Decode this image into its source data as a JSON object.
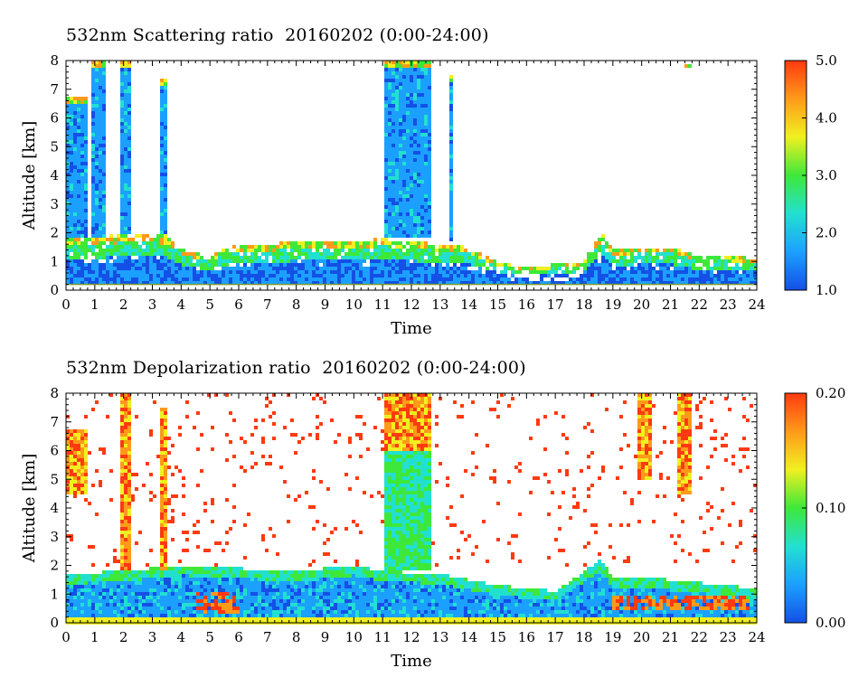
{
  "chart_data": [
    {
      "type": "heatmap",
      "title": "532nm Scattering ratio  20160202 (0:00-24:00)",
      "xlabel": "Time",
      "ylabel": "Altitude [km]",
      "x_ticks": [
        "0",
        "1",
        "2",
        "3",
        "4",
        "5",
        "6",
        "7",
        "8",
        "9",
        "10",
        "11",
        "12",
        "13",
        "14",
        "15",
        "16",
        "17",
        "18",
        "19",
        "20",
        "21",
        "22",
        "23",
        "24"
      ],
      "y_ticks": [
        "0",
        "1",
        "2",
        "3",
        "4",
        "5",
        "6",
        "7",
        "8"
      ],
      "xlim": [
        0,
        24
      ],
      "ylim": [
        0,
        8
      ],
      "colorbar": {
        "range": [
          1.0,
          5.0
        ],
        "tick_labels": [
          "5.0",
          "4.0",
          "3.0",
          "2.0",
          "1.0"
        ],
        "colors": [
          "#1450e6",
          "#1ca0ff",
          "#22e0d0",
          "#3ee83a",
          "#f0f020",
          "#ff9a1a",
          "#ff3a10"
        ]
      },
      "features": {
        "boundary_layer_top_km": [
          [
            0,
            1.8
          ],
          [
            1.5,
            1.9
          ],
          [
            2.5,
            2.0
          ],
          [
            3.5,
            1.9
          ],
          [
            4.0,
            1.5
          ],
          [
            4.5,
            1.3
          ],
          [
            5.0,
            1.2
          ],
          [
            6.0,
            1.6
          ],
          [
            7.0,
            1.6
          ],
          [
            8.0,
            1.7
          ],
          [
            9.0,
            1.7
          ],
          [
            10.0,
            1.7
          ],
          [
            11.0,
            1.8
          ],
          [
            12.0,
            1.7
          ],
          [
            13.0,
            1.6
          ],
          [
            14.0,
            1.5
          ],
          [
            15.0,
            1.0
          ],
          [
            16.0,
            0.8
          ],
          [
            17.0,
            0.9
          ],
          [
            18.0,
            1.0
          ],
          [
            18.6,
            2.0
          ],
          [
            19.0,
            1.4
          ],
          [
            20.0,
            1.5
          ],
          [
            21.0,
            1.5
          ],
          [
            22.0,
            1.2
          ],
          [
            23.0,
            1.2
          ],
          [
            24.0,
            1.1
          ]
        ],
        "cloud_columns": [
          {
            "t0": 0.0,
            "t1": 0.7,
            "base": 1.8,
            "top": 6.8
          },
          {
            "t0": 0.9,
            "t1": 1.4,
            "base": 1.8,
            "top": 8.0
          },
          {
            "t0": 1.9,
            "t1": 2.3,
            "base": 1.9,
            "top": 8.0
          },
          {
            "t0": 3.3,
            "t1": 3.5,
            "base": 1.9,
            "top": 7.4
          },
          {
            "t0": 11.0,
            "t1": 12.7,
            "base": 1.8,
            "top": 8.0
          },
          {
            "t0": 13.3,
            "t1": 13.5,
            "base": 1.7,
            "top": 7.5
          },
          {
            "t0": 21.5,
            "t1": 21.7,
            "base": 7.7,
            "top": 7.9
          }
        ]
      }
    },
    {
      "type": "heatmap",
      "title": "532nm Depolarization ratio  20160202 (0:00-24:00)",
      "xlabel": "Time",
      "ylabel": "Altitude [km]",
      "x_ticks": [
        "0",
        "1",
        "2",
        "3",
        "4",
        "5",
        "6",
        "7",
        "8",
        "9",
        "10",
        "11",
        "12",
        "13",
        "14",
        "15",
        "16",
        "17",
        "18",
        "19",
        "20",
        "21",
        "22",
        "23",
        "24"
      ],
      "y_ticks": [
        "0",
        "1",
        "2",
        "3",
        "4",
        "5",
        "6",
        "7",
        "8"
      ],
      "xlim": [
        0,
        24
      ],
      "ylim": [
        0,
        8
      ],
      "colorbar": {
        "range": [
          0.0,
          0.2
        ],
        "tick_labels": [
          "0.20",
          "0.10",
          "0.00"
        ],
        "colors": [
          "#1450e6",
          "#1ca0ff",
          "#22e0d0",
          "#3ee83a",
          "#f0f020",
          "#ff9a1a",
          "#ff3a10"
        ]
      },
      "features": {
        "aerosol_layer_top_km": [
          [
            0,
            1.7
          ],
          [
            2.0,
            1.8
          ],
          [
            4.0,
            2.0
          ],
          [
            6.0,
            1.9
          ],
          [
            8.0,
            1.8
          ],
          [
            10.0,
            2.0
          ],
          [
            11.0,
            1.8
          ],
          [
            13.0,
            1.7
          ],
          [
            14.0,
            1.5
          ],
          [
            15.0,
            1.3
          ],
          [
            17.0,
            1.1
          ],
          [
            18.6,
            2.2
          ],
          [
            19.0,
            1.6
          ],
          [
            20.0,
            1.6
          ],
          [
            22.0,
            1.4
          ],
          [
            24.0,
            1.2
          ]
        ],
        "high_depol_columns": [
          {
            "t0": 0.0,
            "t1": 0.7,
            "base": 4.5,
            "top": 6.8
          },
          {
            "t0": 1.9,
            "t1": 2.3,
            "base": 1.8,
            "top": 8.0
          },
          {
            "t0": 3.3,
            "t1": 3.5,
            "base": 1.8,
            "top": 7.5
          },
          {
            "t0": 11.0,
            "t1": 12.7,
            "base": 6.0,
            "top": 8.0
          },
          {
            "t0": 19.8,
            "t1": 20.3,
            "base": 5.0,
            "top": 8.0
          },
          {
            "t0": 21.2,
            "t1": 21.8,
            "base": 4.5,
            "top": 8.0
          }
        ],
        "high_depol_near_surface": [
          {
            "t0": 4.5,
            "t1": 6.0,
            "base": 0.3,
            "top": 1.1
          },
          {
            "t0": 19.0,
            "t1": 23.8,
            "base": 0.5,
            "top": 1.0
          }
        ]
      }
    }
  ]
}
